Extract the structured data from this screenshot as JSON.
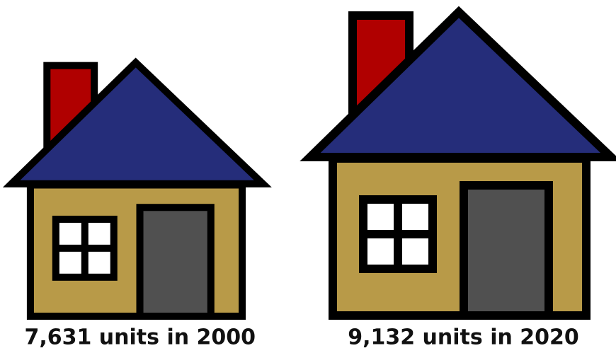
{
  "chart_data": {
    "type": "pictograph",
    "values": [
      7631,
      9132
    ],
    "value_labels": [
      "7,631 units in 2000",
      "9,132 units in 2020"
    ],
    "colors": {
      "roof": "#252d7a",
      "wall": "#b89a48",
      "chimney": "#b00000",
      "door": "#505050",
      "window": "#ffffff"
    }
  }
}
